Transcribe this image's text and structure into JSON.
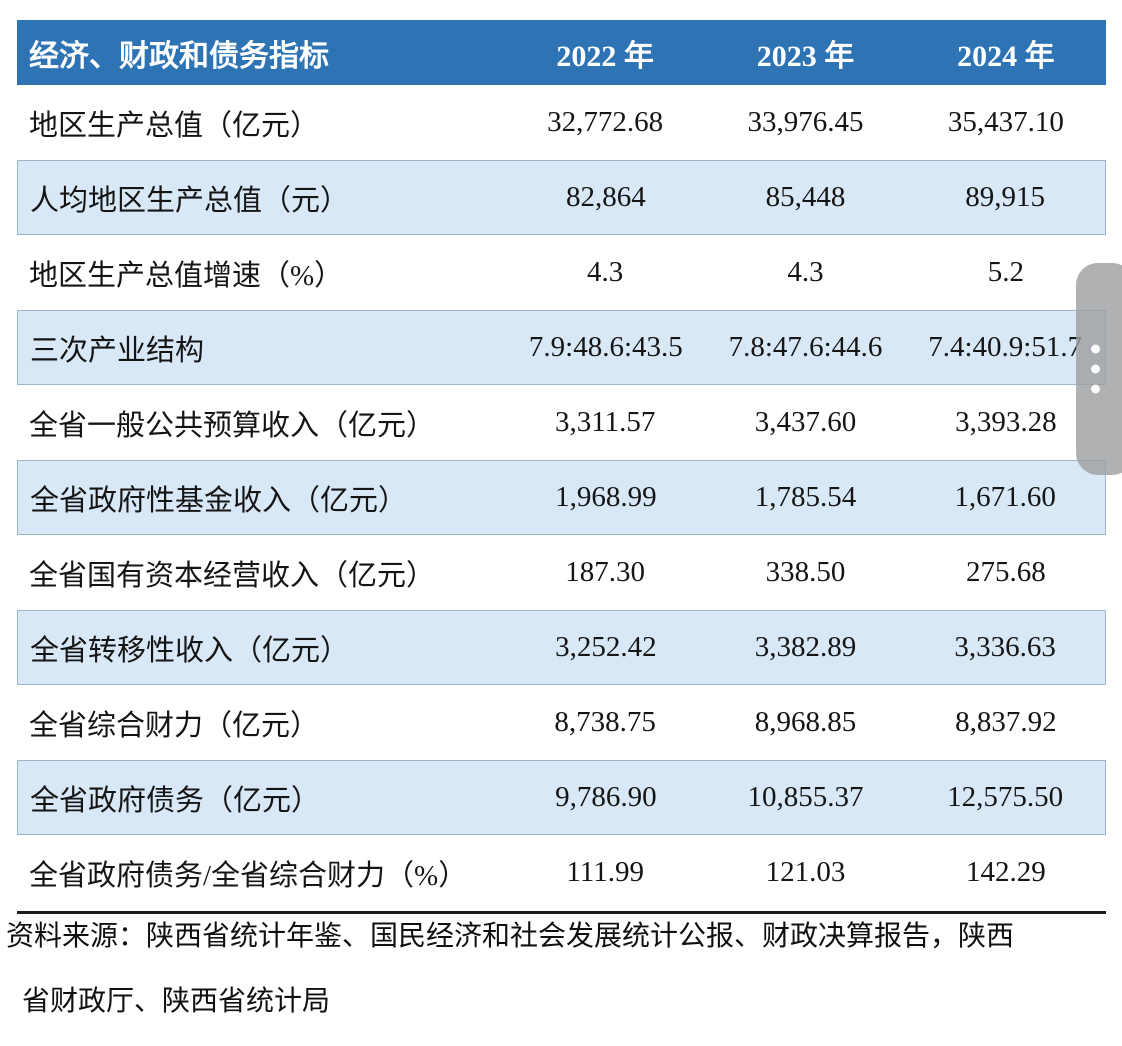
{
  "table": {
    "header": {
      "indicator_label": "经济、财政和债务指标",
      "years": [
        "2022 年",
        "2023 年",
        "2024 年"
      ]
    },
    "rows": [
      {
        "label": "地区生产总值（亿元）",
        "values": [
          "32,772.68",
          "33,976.45",
          "35,437.10"
        ]
      },
      {
        "label": "人均地区生产总值（元）",
        "values": [
          "82,864",
          "85,448",
          "89,915"
        ]
      },
      {
        "label": "地区生产总值增速（%）",
        "values": [
          "4.3",
          "4.3",
          "5.2"
        ]
      },
      {
        "label": "三次产业结构",
        "values": [
          "7.9:48.6:43.5",
          "7.8:47.6:44.6",
          "7.4:40.9:51.7"
        ]
      },
      {
        "label": "全省一般公共预算收入（亿元）",
        "values": [
          "3,311.57",
          "3,437.60",
          "3,393.28"
        ]
      },
      {
        "label": "全省政府性基金收入（亿元）",
        "values": [
          "1,968.99",
          "1,785.54",
          "1,671.60"
        ]
      },
      {
        "label": "全省国有资本经营收入（亿元）",
        "values": [
          "187.30",
          "338.50",
          "275.68"
        ]
      },
      {
        "label": "全省转移性收入（亿元）",
        "values": [
          "3,252.42",
          "3,382.89",
          "3,336.63"
        ]
      },
      {
        "label": "全省综合财力（亿元）",
        "values": [
          "8,738.75",
          "8,968.85",
          "8,837.92"
        ]
      },
      {
        "label": "全省政府债务（亿元）",
        "values": [
          "9,786.90",
          "10,855.37",
          "12,575.50"
        ]
      },
      {
        "label": "全省政府债务/全省综合财力（%）",
        "values": [
          "111.99",
          "121.03",
          "142.29"
        ]
      }
    ]
  },
  "footer": {
    "source_line1": "资料来源：陕西省统计年鉴、国民经济和社会发展统计公报、财政决算报告，陕西",
    "source_line2": "省财政厅、陕西省统计局"
  },
  "colors": {
    "header_bg": "#2E74B5",
    "header_text": "#FFFFFF",
    "alt_row_bg": "#D9E8F6",
    "alt_row_border": "#9FB6C9",
    "body_text": "#151515",
    "bottom_rule": "#1C1C1C",
    "scroll_handle": "rgba(156,158,160,0.80)",
    "handle_dot": "#FFFFFF"
  }
}
